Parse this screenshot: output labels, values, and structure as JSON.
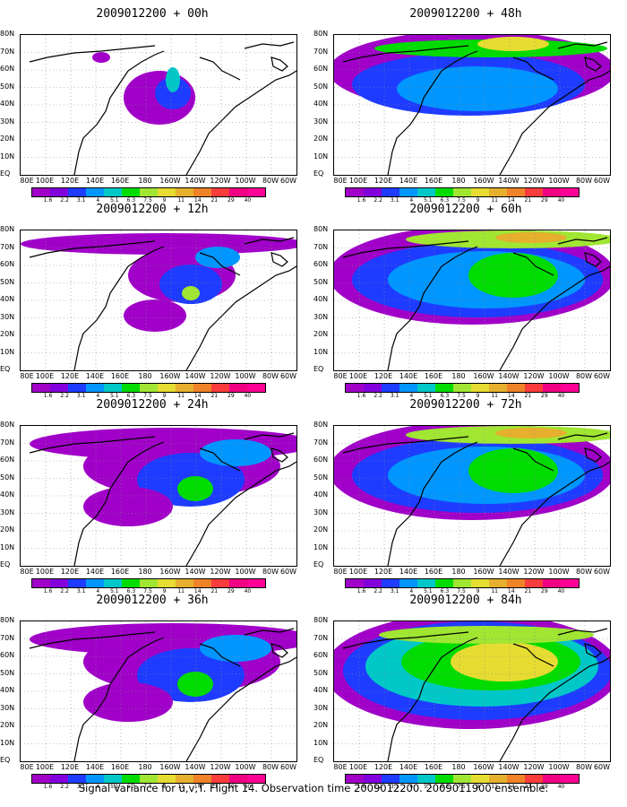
{
  "caption": "Signal Variance for u,v,T. Flight 14. Observation time 2009012200. 2009011900 ensemble.",
  "lat_labels": [
    "80N",
    "70N",
    "60N",
    "50N",
    "40N",
    "30N",
    "20N",
    "10N",
    "EQ"
  ],
  "lon_labels": [
    "80E",
    "100E",
    "120E",
    "140E",
    "160E",
    "180",
    "160W",
    "140W",
    "120W",
    "100W",
    "80W",
    "60W"
  ],
  "colorbar": {
    "levels": [
      "1.6",
      "2.2",
      "3.1",
      "4",
      "5.1",
      "6.3",
      "7.5",
      "9",
      "11",
      "14",
      "21",
      "29",
      "40"
    ],
    "colors": [
      "#a000c8",
      "#8200dc",
      "#1e3cff",
      "#0096ff",
      "#00c8c8",
      "#00dc00",
      "#a0e632",
      "#e6dc32",
      "#e6af2d",
      "#f08228",
      "#fa3c3c",
      "#f00082",
      "#ff0096"
    ]
  },
  "chart_data": [
    {
      "type": "heatmap",
      "title": "2009012200 + 00h",
      "forecast_hour": 0,
      "x_range": [
        "80E",
        "60W"
      ],
      "y_range": [
        "EQ",
        "80N"
      ],
      "coverage": "low",
      "max_level": "5.1"
    },
    {
      "type": "heatmap",
      "title": "2009012200 + 12h",
      "forecast_hour": 12,
      "x_range": [
        "80E",
        "60W"
      ],
      "y_range": [
        "EQ",
        "80N"
      ],
      "coverage": "low-moderate",
      "max_level": "9"
    },
    {
      "type": "heatmap",
      "title": "2009012200 + 24h",
      "forecast_hour": 24,
      "x_range": [
        "80E",
        "60W"
      ],
      "y_range": [
        "EQ",
        "80N"
      ],
      "coverage": "moderate",
      "max_level": "9"
    },
    {
      "type": "heatmap",
      "title": "2009012200 + 36h",
      "forecast_hour": 36,
      "x_range": [
        "80E",
        "60W"
      ],
      "y_range": [
        "EQ",
        "80N"
      ],
      "coverage": "moderate",
      "max_level": "7.5"
    },
    {
      "type": "heatmap",
      "title": "2009012200 + 48h",
      "forecast_hour": 48,
      "x_range": [
        "80E",
        "60W"
      ],
      "y_range": [
        "EQ",
        "80N"
      ],
      "coverage": "moderate-high",
      "max_level": "9"
    },
    {
      "type": "heatmap",
      "title": "2009012200 + 60h",
      "forecast_hour": 60,
      "x_range": [
        "80E",
        "60W"
      ],
      "y_range": [
        "EQ",
        "80N"
      ],
      "coverage": "high",
      "max_level": "11"
    },
    {
      "type": "heatmap",
      "title": "2009012200 + 72h",
      "forecast_hour": 72,
      "x_range": [
        "80E",
        "60W"
      ],
      "y_range": [
        "EQ",
        "80N"
      ],
      "coverage": "high",
      "max_level": "11"
    },
    {
      "type": "heatmap",
      "title": "2009012200 + 84h",
      "forecast_hour": 84,
      "x_range": [
        "80E",
        "60W"
      ],
      "y_range": [
        "EQ",
        "80N"
      ],
      "coverage": "very high",
      "max_level": "11"
    }
  ]
}
